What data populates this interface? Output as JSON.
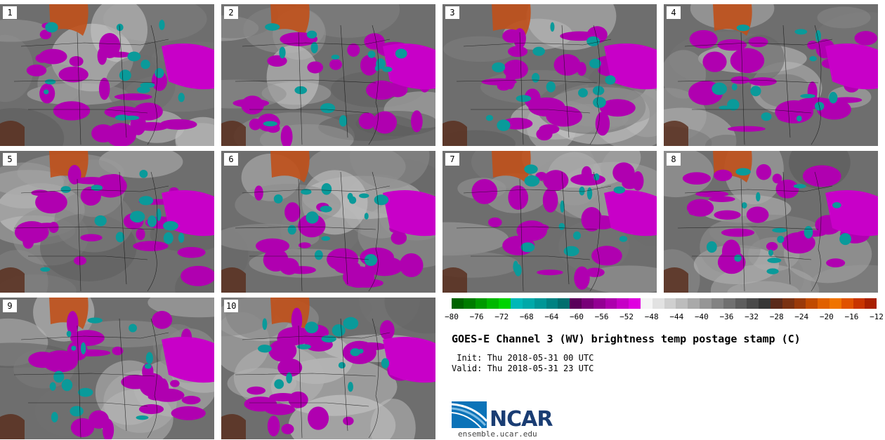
{
  "panels": [
    {
      "label": "1"
    },
    {
      "label": "2"
    },
    {
      "label": "3"
    },
    {
      "label": "4"
    },
    {
      "label": "5"
    },
    {
      "label": "6"
    },
    {
      "label": "7"
    },
    {
      "label": "8"
    },
    {
      "label": "9"
    },
    {
      "label": "10"
    }
  ],
  "colorbar": {
    "ticks": [
      "−80",
      "−76",
      "−72",
      "−68",
      "−64",
      "−60",
      "−56",
      "−52",
      "−48",
      "−44",
      "−40",
      "−36",
      "−32",
      "−28",
      "−24",
      "−20",
      "−16",
      "−12"
    ],
    "colors": [
      "#006400",
      "#007c00",
      "#009a00",
      "#00b800",
      "#00d400",
      "#00b8b8",
      "#00a9a9",
      "#009696",
      "#008282",
      "#006e6e",
      "#5a005a",
      "#780078",
      "#930093",
      "#ad00ad",
      "#c600c6",
      "#e000e0",
      "#f5f5f5",
      "#e2e2e2",
      "#cfcfcf",
      "#bcbcbc",
      "#a9a9a9",
      "#969696",
      "#838383",
      "#707070",
      "#5d5d5d",
      "#4a4a4a",
      "#373737",
      "#5a2a1a",
      "#7a3212",
      "#9a3a0a",
      "#c04a00",
      "#e06000",
      "#f07400",
      "#e05200",
      "#c83400",
      "#a82000"
    ]
  },
  "title": "GOES-E Channel 3 (WV) brightness temp postage stamp (C)",
  "init_label": " Init: Thu 2018-05-31 00 UTC",
  "valid_label": "Valid: Thu 2018-05-31 23 UTC",
  "logo_text": "NCAR",
  "site": "ensemble.ucar.edu"
}
